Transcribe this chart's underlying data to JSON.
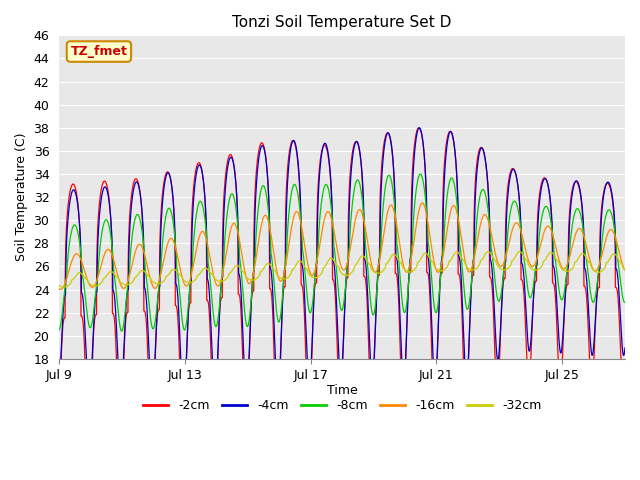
{
  "title": "Tonzi Soil Temperature Set D",
  "xlabel": "Time",
  "ylabel": "Soil Temperature (C)",
  "ylim": [
    18,
    46
  ],
  "yticks": [
    18,
    20,
    22,
    24,
    26,
    28,
    30,
    32,
    34,
    36,
    38,
    40,
    42,
    44,
    46
  ],
  "xtick_labels": [
    "Jul 9",
    "Jul 13",
    "Jul 17",
    "Jul 21",
    "Jul 25"
  ],
  "xtick_positions": [
    0,
    4,
    8,
    12,
    16
  ],
  "series_colors": [
    "#ff0000",
    "#0000cc",
    "#00cc00",
    "#ff8800",
    "#cccc00"
  ],
  "series_labels": [
    "-2cm",
    "-4cm",
    "-8cm",
    "-16cm",
    "-32cm"
  ],
  "legend_label": "TZ_fmet",
  "legend_box_color": "#ffffcc",
  "legend_box_edgecolor": "#cc8800",
  "plot_bg_color": "#e8e8e8",
  "n_days": 18,
  "pts_per_day": 144,
  "base_mean_2cm": [
    21.5,
    21.8,
    22.0,
    22.2,
    22.8,
    23.2,
    23.8,
    24.2,
    24.5,
    25.0,
    25.2,
    25.5,
    25.5,
    25.3,
    25.0,
    24.8,
    24.5,
    24.2
  ],
  "amp_2cm": [
    11.5,
    11.5,
    11.5,
    11.5,
    12.0,
    12.0,
    12.5,
    13.0,
    12.0,
    11.5,
    12.0,
    12.5,
    12.5,
    12.0,
    10.0,
    9.0,
    9.0,
    9.0
  ],
  "base_mean_4cm": [
    23.5,
    23.8,
    24.0,
    24.2,
    24.6,
    25.0,
    25.5,
    26.0,
    26.3,
    26.5,
    26.7,
    27.0,
    27.0,
    26.8,
    26.5,
    26.2,
    26.0,
    25.8
  ],
  "amp_4cm": [
    9.0,
    9.0,
    9.0,
    9.5,
    10.0,
    10.0,
    10.5,
    11.0,
    10.5,
    10.0,
    10.5,
    11.0,
    11.0,
    10.5,
    8.5,
    7.5,
    7.5,
    7.5
  ],
  "base_mean_8cm": [
    25.0,
    25.2,
    25.4,
    25.6,
    26.0,
    26.3,
    26.8,
    27.2,
    27.5,
    27.7,
    27.8,
    28.0,
    28.0,
    27.8,
    27.5,
    27.3,
    27.1,
    26.9
  ],
  "amp_8cm": [
    4.5,
    4.5,
    5.0,
    5.0,
    5.5,
    5.5,
    6.0,
    6.0,
    5.5,
    5.5,
    6.0,
    6.0,
    6.0,
    5.5,
    4.5,
    4.0,
    4.0,
    4.0
  ],
  "base_mean_16cm": [
    25.5,
    25.7,
    25.9,
    26.1,
    26.5,
    26.8,
    27.3,
    27.7,
    28.0,
    28.2,
    28.3,
    28.5,
    28.5,
    28.3,
    28.0,
    27.8,
    27.6,
    27.4
  ],
  "amp_16cm": [
    1.5,
    1.5,
    1.8,
    2.0,
    2.2,
    2.5,
    2.8,
    3.0,
    2.8,
    2.5,
    2.8,
    3.0,
    3.0,
    2.8,
    2.0,
    1.8,
    1.8,
    1.8
  ],
  "base_mean_32cm": [
    24.8,
    24.9,
    25.0,
    25.1,
    25.2,
    25.3,
    25.5,
    25.6,
    25.8,
    26.0,
    26.2,
    26.3,
    26.4,
    26.5,
    26.5,
    26.5,
    26.4,
    26.3
  ],
  "amp_32cm": [
    0.6,
    0.6,
    0.6,
    0.6,
    0.6,
    0.6,
    0.7,
    0.7,
    0.8,
    0.8,
    0.8,
    0.8,
    0.8,
    0.8,
    0.8,
    0.8,
    0.8,
    0.8
  ],
  "phase_2cm": -1.2,
  "phase_4cm": -1.3,
  "phase_8cm": -1.5,
  "phase_16cm": -1.9,
  "phase_32cm": -2.5,
  "skew_2cm": 3.5,
  "skew_4cm": 2.5,
  "skew_8cm": 1.5,
  "skew_16cm": 1.0,
  "skew_32cm": 0.5
}
